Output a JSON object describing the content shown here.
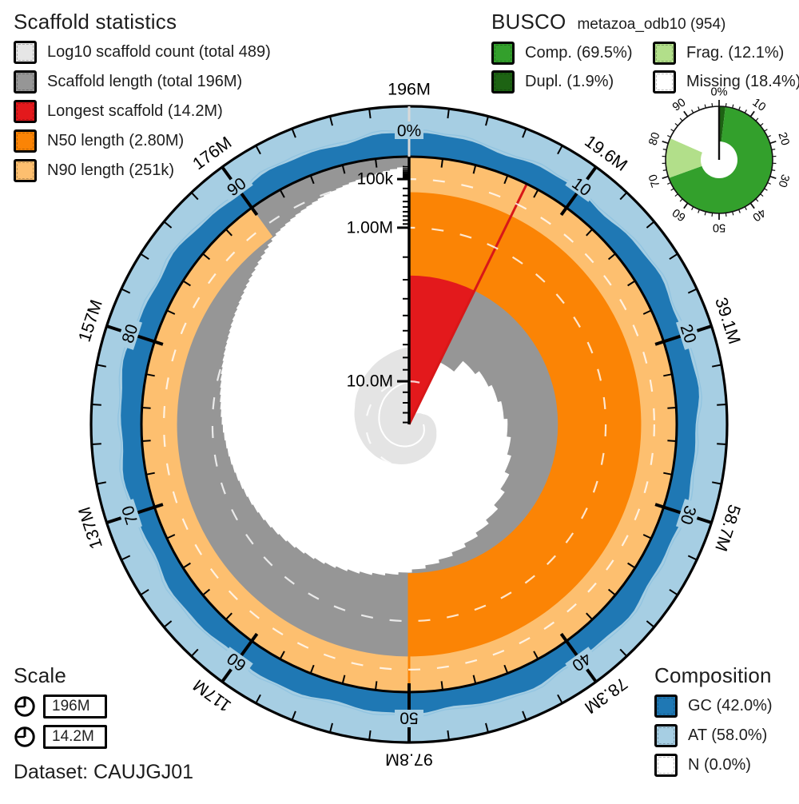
{
  "scaffold_legend": {
    "title": "Scaffold statistics",
    "items": [
      {
        "label": "Log10 scaffold count (total 489)",
        "color": "#e6e6e6"
      },
      {
        "label": "Scaffold length (total 196M)",
        "color": "#969696"
      },
      {
        "label": "Longest scaffold (14.2M)",
        "color": "#e3191c"
      },
      {
        "label": "N50 length (2.80M)",
        "color": "#fb8405"
      },
      {
        "label": "N90 length (251k)",
        "color": "#fdbf6f"
      }
    ]
  },
  "busco_legend": {
    "title": "BUSCO",
    "subtitle": "metazoa_odb10 (954)",
    "items": [
      {
        "label": "Comp. (69.5%)",
        "color": "#33a02c"
      },
      {
        "label": "Frag. (12.1%)",
        "color": "#b2df8a"
      },
      {
        "label": "Dupl. (1.9%)",
        "color": "#1d6313"
      },
      {
        "label": "Missing (18.4%)",
        "color": "#ffffff"
      }
    ]
  },
  "composition_legend": {
    "title": "Composition",
    "items": [
      {
        "label": "GC (42.0%)",
        "color": "#1f78b4"
      },
      {
        "label": "AT (58.0%)",
        "color": "#a6cee3"
      },
      {
        "label": "N (0.0%)",
        "color": "#ffffff"
      }
    ]
  },
  "scale_legend": {
    "title": "Scale",
    "values": [
      "196M",
      "14.2M"
    ]
  },
  "dataset": {
    "label": "Dataset: CAUJGJ01"
  },
  "chart_data": {
    "type": "snail",
    "dataset": "CAUJGJ01",
    "assembly": {
      "total_length": 196000000,
      "scaffold_count": 489,
      "longest_scaffold": 14200000,
      "n50": 2800000,
      "n90": 251000,
      "gc_percent": 42.0,
      "at_percent": 58.0,
      "n_percent": 0.0
    },
    "busco": {
      "lineage": "metazoa_odb10",
      "total": 954,
      "complete_pct": 69.5,
      "duplicated_pct": 1.9,
      "fragmented_pct": 12.1,
      "missing_pct": 18.4,
      "tick_labels": [
        "0%",
        "10",
        "20",
        "30",
        "40",
        "50",
        "60",
        "70",
        "80",
        "90"
      ]
    },
    "radial_axis": {
      "scale": "sqrt",
      "max_value": 14200000,
      "ticks": [
        {
          "label": "100k",
          "value": 100000
        },
        {
          "label": "1.00M",
          "value": 1000000
        },
        {
          "label": "10.0M",
          "value": 10000000
        }
      ]
    },
    "ring_mb_labels": [
      {
        "pct": 0,
        "label": "196M"
      },
      {
        "pct": 10,
        "label": "19.6M"
      },
      {
        "pct": 20,
        "label": "39.1M"
      },
      {
        "pct": 30,
        "label": "58.7M"
      },
      {
        "pct": 40,
        "label": "78.3M"
      },
      {
        "pct": 50,
        "label": "97.8M"
      },
      {
        "pct": 60,
        "label": "117M"
      },
      {
        "pct": 70,
        "label": "137M"
      },
      {
        "pct": 80,
        "label": "157M"
      },
      {
        "pct": 90,
        "label": "176M"
      }
    ],
    "ring_pct_labels": [
      {
        "pct": 0,
        "label": "0%"
      },
      {
        "pct": 10,
        "label": "10"
      },
      {
        "pct": 20,
        "label": "20"
      },
      {
        "pct": 30,
        "label": "30"
      },
      {
        "pct": 40,
        "label": "40"
      },
      {
        "pct": 50,
        "label": "50"
      },
      {
        "pct": 60,
        "label": "60"
      },
      {
        "pct": 70,
        "label": "70"
      },
      {
        "pct": 80,
        "label": "80"
      },
      {
        "pct": 90,
        "label": "90"
      }
    ],
    "scaffold_length_at_pct": [
      [
        0,
        14200000
      ],
      [
        7.245,
        14200000
      ],
      [
        7.25,
        7800000
      ],
      [
        9,
        7200000
      ],
      [
        12,
        6600000
      ],
      [
        16,
        6300000
      ],
      [
        20,
        6000000
      ],
      [
        25,
        5600000
      ],
      [
        30,
        5100000
      ],
      [
        34,
        4600000
      ],
      [
        38,
        4050000
      ],
      [
        42,
        3600000
      ],
      [
        46,
        3200000
      ],
      [
        50,
        2800000
      ],
      [
        54,
        2500000
      ],
      [
        58,
        2200000
      ],
      [
        62,
        1950000
      ],
      [
        66,
        1720000
      ],
      [
        70,
        1520000
      ],
      [
        74,
        1330000
      ],
      [
        78,
        1120000
      ],
      [
        82,
        880000
      ],
      [
        85,
        660000
      ],
      [
        88,
        420000
      ],
      [
        90,
        251000
      ],
      [
        92,
        175000
      ],
      [
        94,
        115000
      ],
      [
        96,
        72000
      ],
      [
        98,
        40000
      ],
      [
        100,
        12000
      ]
    ],
    "scaffold_count_at_pct": [
      [
        0,
        1
      ],
      [
        5,
        2
      ],
      [
        10,
        3
      ],
      [
        15,
        4
      ],
      [
        20,
        6
      ],
      [
        25,
        8
      ],
      [
        30,
        10
      ],
      [
        35,
        13
      ],
      [
        40,
        16
      ],
      [
        45,
        19
      ],
      [
        50,
        23
      ],
      [
        55,
        28
      ],
      [
        60,
        35
      ],
      [
        65,
        44
      ],
      [
        70,
        56
      ],
      [
        75,
        72
      ],
      [
        80,
        96
      ],
      [
        85,
        140
      ],
      [
        90,
        218
      ],
      [
        95,
        330
      ],
      [
        100,
        489
      ]
    ],
    "colors": {
      "count": "#e4e4e4",
      "length": "#969696",
      "longest": "#e3191c",
      "longest_line": "#d81718",
      "n50": "#fb8405",
      "n90": "#fdbf6f",
      "gc": "#1f78b4",
      "at": "#a6cee3",
      "busco_complete": "#33a02c",
      "busco_duplicated": "#1d6313",
      "busco_fragmented": "#b2df8a",
      "busco_missing": "#ffffff",
      "gridline": "rgba(255,255,255,0.8)",
      "envelope": "#8fc3e0"
    }
  }
}
